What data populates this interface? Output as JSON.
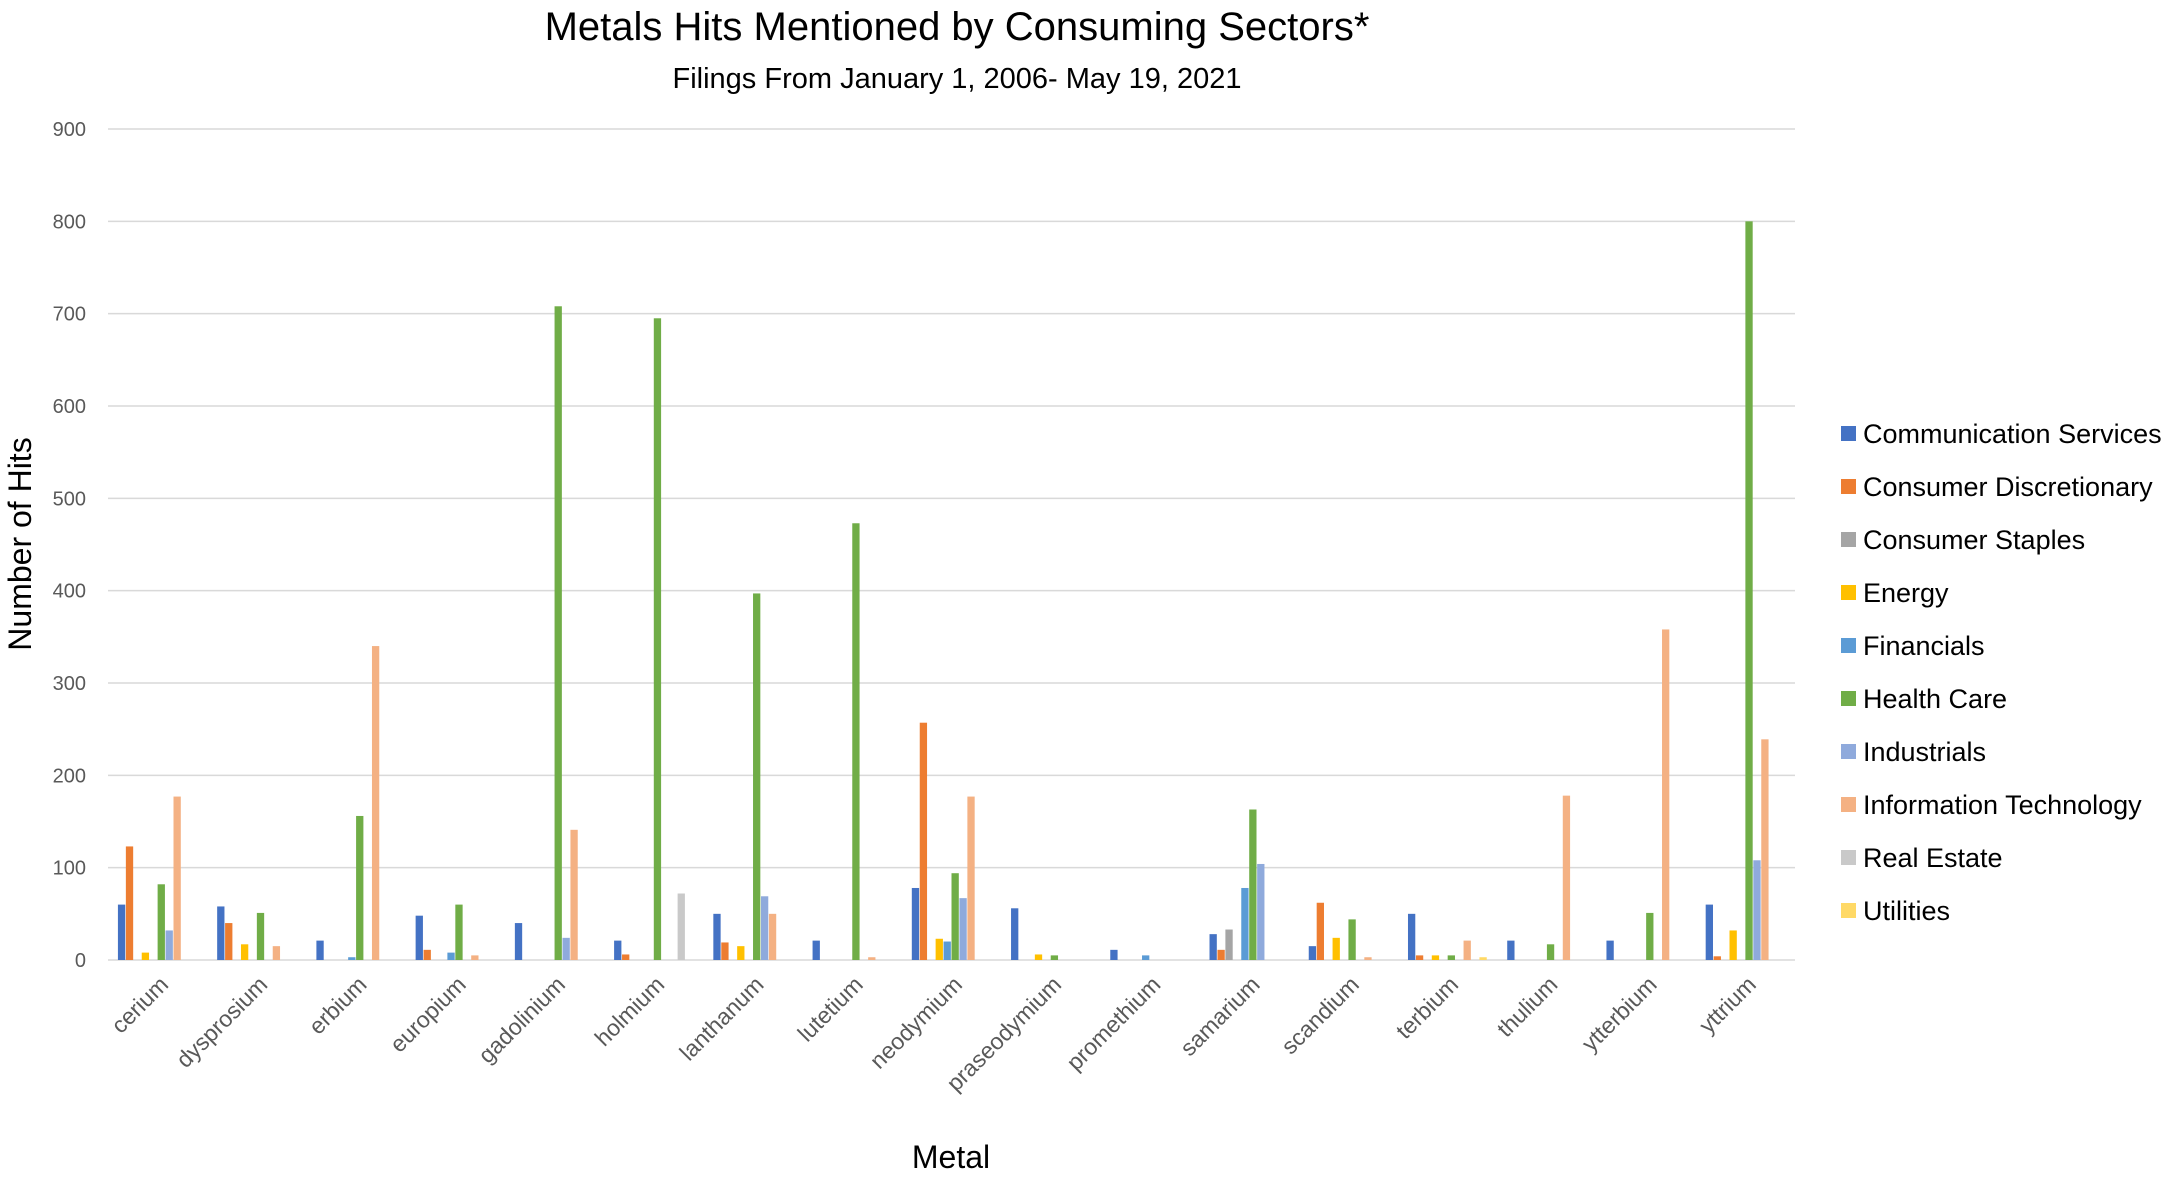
{
  "chart_data": {
    "type": "bar",
    "title": "Metals Hits Mentioned by Consuming Sectors*",
    "subtitle": "Filings From January 1, 2006- May 19, 2021",
    "xlabel": "Metal",
    "ylabel": "Number of Hits",
    "ylim": [
      0,
      900
    ],
    "yticks": [
      0,
      100,
      200,
      300,
      400,
      500,
      600,
      700,
      800,
      900
    ],
    "grid": true,
    "legend_position": "right",
    "categories": [
      "cerium",
      "dysprosium",
      "erbium",
      "europium",
      "gadolinium",
      "holmium",
      "lanthanum",
      "lutetium",
      "neodymium",
      "praseodymium",
      "promethium",
      "samarium",
      "scandium",
      "terbium",
      "thulium",
      "ytterbium",
      "yttrium"
    ],
    "series": [
      {
        "name": "Communication Services",
        "color": "#4472C4",
        "values": [
          60,
          58,
          21,
          48,
          40,
          21,
          50,
          21,
          78,
          56,
          11,
          28,
          15,
          50,
          21,
          21,
          60
        ]
      },
      {
        "name": "Consumer Discretionary",
        "color": "#ED7D31",
        "values": [
          123,
          40,
          0,
          11,
          0,
          6,
          19,
          0,
          257,
          0,
          0,
          11,
          62,
          5,
          0,
          0,
          4
        ]
      },
      {
        "name": "Consumer Staples",
        "color": "#A5A5A5",
        "values": [
          0,
          0,
          0,
          0,
          0,
          0,
          0,
          0,
          0,
          0,
          0,
          33,
          0,
          0,
          0,
          0,
          0
        ]
      },
      {
        "name": "Energy",
        "color": "#FFC000",
        "values": [
          8,
          17,
          0,
          0,
          0,
          0,
          15,
          0,
          23,
          6,
          0,
          0,
          24,
          5,
          0,
          0,
          32
        ]
      },
      {
        "name": "Financials",
        "color": "#5B9BD5",
        "values": [
          0,
          0,
          3,
          8,
          0,
          0,
          0,
          0,
          20,
          0,
          5,
          78,
          0,
          0,
          0,
          0,
          0
        ]
      },
      {
        "name": "Health Care",
        "color": "#70AD47",
        "values": [
          82,
          51,
          156,
          60,
          708,
          695,
          397,
          473,
          94,
          5,
          0,
          163,
          44,
          5,
          17,
          51,
          800
        ]
      },
      {
        "name": "Industrials",
        "color": "#8FAADC",
        "values": [
          32,
          0,
          0,
          0,
          24,
          0,
          69,
          0,
          67,
          0,
          0,
          104,
          0,
          0,
          0,
          0,
          108
        ]
      },
      {
        "name": "Information Technology",
        "color": "#F4B183",
        "values": [
          177,
          15,
          340,
          5,
          141,
          0,
          50,
          3,
          177,
          0,
          0,
          0,
          3,
          21,
          178,
          358,
          239
        ]
      },
      {
        "name": "Real Estate",
        "color": "#C9C9C9",
        "values": [
          0,
          0,
          0,
          0,
          0,
          72,
          0,
          0,
          0,
          0,
          0,
          0,
          0,
          0,
          0,
          0,
          0
        ]
      },
      {
        "name": "Utilities",
        "color": "#FFD966",
        "values": [
          0,
          0,
          0,
          0,
          0,
          0,
          0,
          0,
          0,
          0,
          0,
          0,
          0,
          3,
          0,
          0,
          0
        ]
      }
    ]
  }
}
